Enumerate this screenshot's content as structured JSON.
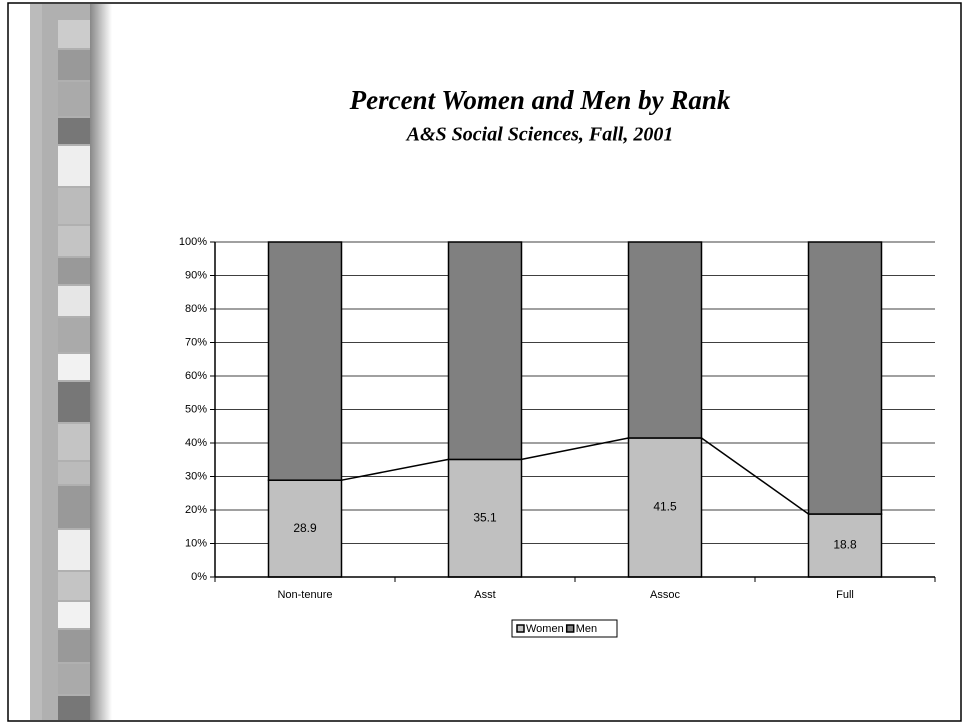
{
  "chart_data": {
    "type": "stacked_bar",
    "title": "Percent Women and Men by Rank",
    "subtitle": "A&S Social Sciences, Fall, 2001",
    "categories": [
      "Non-tenure",
      "Asst",
      "Assoc",
      "Full"
    ],
    "series": [
      {
        "name": "Women",
        "color": "#c0c0c0",
        "values": [
          28.9,
          35.1,
          41.5,
          18.8
        ]
      },
      {
        "name": "Men",
        "color": "#808080",
        "values": [
          71.1,
          64.9,
          58.5,
          81.2
        ]
      }
    ],
    "data_labels_series": 0,
    "series_lines": true,
    "ylim": [
      0,
      100
    ],
    "yticks": [
      {
        "value": 0,
        "label": "0%"
      },
      {
        "value": 10,
        "label": "10%"
      },
      {
        "value": 20,
        "label": "20%"
      },
      {
        "value": 30,
        "label": "30%"
      },
      {
        "value": 40,
        "label": "40%"
      },
      {
        "value": 50,
        "label": "50%"
      },
      {
        "value": 60,
        "label": "60%"
      },
      {
        "value": 70,
        "label": "70%"
      },
      {
        "value": 80,
        "label": "80%"
      },
      {
        "value": 90,
        "label": "90%"
      },
      {
        "value": 100,
        "label": "100%"
      }
    ],
    "grid": true,
    "legend": "bottom"
  }
}
